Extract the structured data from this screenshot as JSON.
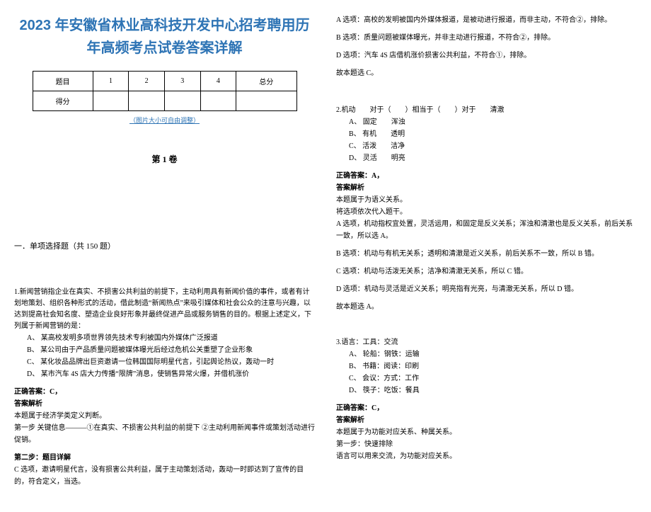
{
  "doc": {
    "title_line1": "2023 年安徽省林业高科技开发中心招考聘用历",
    "title_line2": "年高频考点试卷答案详解",
    "resize_note": "（图片大小可自由调整）",
    "section1_heading": "第 1 卷",
    "part_a_heading": "一．单项选择题（共 150 题）",
    "score_table": {
      "headers": [
        "题目",
        "1",
        "2",
        "3",
        "4",
        "总分"
      ],
      "row2_label": "得分"
    },
    "q1": {
      "text": "1.新闻营销指企业在真实、不损害公共利益的前提下，主动利用具有新闻价值的事件，或者有计划地策划、组织各种形式的活动，借此制造“新闻热点”来吸引媒体和社会公众的注意与兴趣，以达到提高社会知名度、塑造企业良好形象并最终促进产品或服务销售的目的。根据上述定义，下列属于新闻营销的是：",
      "opts": [
        "A、 某高校发明多项世界领先技术专利被国内外媒体广泛报道",
        "B、 某公司由于产品质量问题被媒体曝光后经过危机公关重塑了企业形象",
        "C、 某化妆品品牌出巨资邀请一位韩国国际明星代言，引起舆论热议，轰动一时",
        "D、 某市汽车 4S 店大力传播“限牌”消息，使销售异常火爆，并借机涨价"
      ],
      "answer_label": "正确答案：C，",
      "analysis_label": "答案解析",
      "lines": [
        "本题属于经济学类定义判断。",
        "第一步 关键信息———①在真实、不损害公共利益的前提下 ②主动利用新闻事件或策划活动进行促销。",
        "第二步：题目详解",
        "C 选项，邀请明星代言，没有损害公共利益，属于主动策划活动，轰动一时即达到了宣传的目的，符合定义，当选。"
      ]
    },
    "right_top": {
      "lines": [
        "A 选项：高校的发明被国内外媒体报道，是被动进行报道，而非主动，不符合②，排除。",
        "B 选项：质量问题被媒体曝光，并非主动进行报道，不符合②，排除。",
        "D 选项：汽车 4S 店借机涨价损害公共利益，不符合①，排除。",
        "故本题选 C。"
      ]
    },
    "q2": {
      "text": "2.机动　　对于（　　）相当于（　　）对于　　清澈",
      "opts": [
        "A、 固定　　浑浊",
        "B、 有机　　透明",
        "C、 活泼　　洁净",
        "D、 灵活　　明亮"
      ],
      "answer_label": "正确答案：A，",
      "analysis_label": "答案解析",
      "lines": [
        "本题属于为语义关系。",
        "将选项依次代入题干。",
        "A 选项，机动指权宜处置，灵活运用，和固定是反义关系；浑浊和清澈也是反义关系，前后关系一致，所以选 A。",
        "B 选项：机动与有机无关系；透明和清澈是近义关系，前后关系不一致，所以 B 错。",
        "C 选项：机动与活泼无关系；洁净和清澈无关系，所以 C 错。",
        "D 选项：机动与灵活是近义关系；明亮指有光亮，与清澈无关系，所以 D 错。",
        "故本题选 A。"
      ]
    },
    "q3": {
      "text": "3.语言：工具：交流",
      "opts": [
        "A、 轮船：钢铁：运输",
        "B、 书籍：阅读：印刷",
        "C、 会议：方式：工作",
        "D、 筷子：吃饭：餐具"
      ],
      "answer_label": "正确答案：C，",
      "analysis_label": "答案解析",
      "lines": [
        "本题属于为功能对应关系、种属关系。",
        "第一步：快速排除",
        "语言可以用来交流，为功能对应关系。"
      ]
    }
  },
  "style": {
    "title_color": "#2e74b5",
    "body_color": "#000000",
    "bg_color": "#ffffff"
  }
}
